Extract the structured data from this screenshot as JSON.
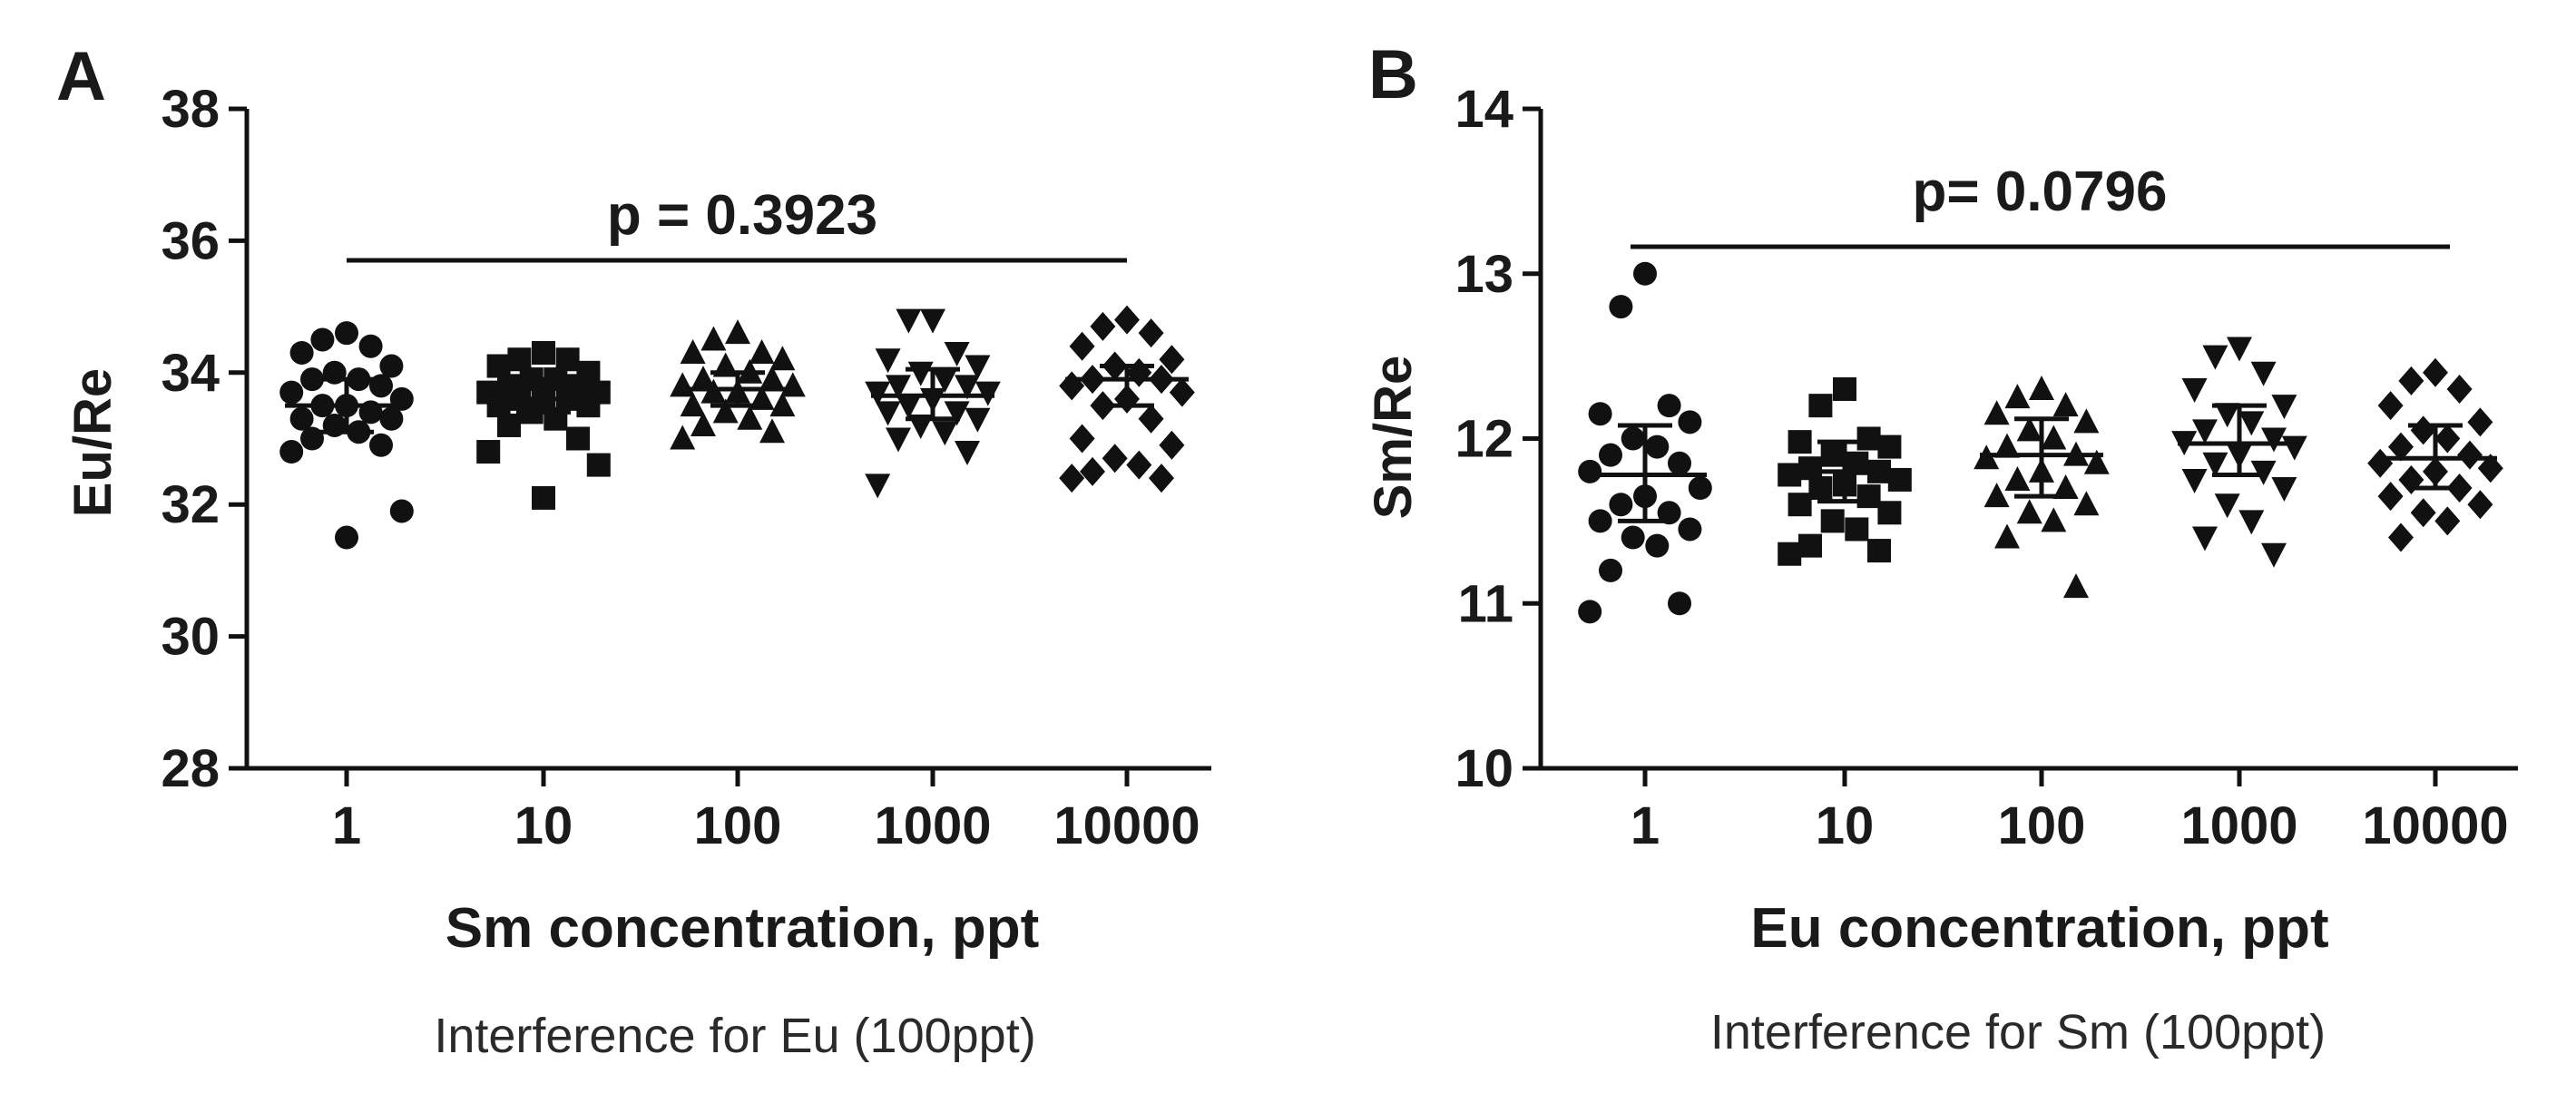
{
  "chart_data": [
    {
      "type": "scatter",
      "panel_label": "A",
      "xlabel": "Sm concentration, ppt",
      "ylabel": "Eu/Re",
      "caption": "Interference for Eu (100ppt)",
      "annotation": "p = 0.3923",
      "ylim": [
        28,
        38
      ],
      "yticks": [
        28,
        30,
        32,
        34,
        36,
        38
      ],
      "categories": [
        "1",
        "10",
        "100",
        "1000",
        "10000"
      ],
      "grid": false,
      "series": [
        {
          "category": "1",
          "marker": "circle",
          "mean": 33.5,
          "err_low": 33.1,
          "err_high": 33.9,
          "values": [
            34.6,
            34.5,
            34.4,
            34.3,
            34.1,
            34.0,
            33.9,
            33.9,
            33.8,
            33.7,
            33.6,
            33.5,
            33.5,
            33.4,
            33.3,
            33.3,
            33.2,
            33.1,
            33.0,
            32.9,
            32.8,
            31.9,
            31.5
          ]
        },
        {
          "category": "10",
          "marker": "square",
          "mean": 33.6,
          "err_low": 33.4,
          "err_high": 33.9,
          "values": [
            34.3,
            34.2,
            34.2,
            34.1,
            34.0,
            33.9,
            33.9,
            33.8,
            33.8,
            33.7,
            33.7,
            33.6,
            33.6,
            33.6,
            33.5,
            33.5,
            33.4,
            33.3,
            33.2,
            33.0,
            32.8,
            32.6,
            32.1
          ]
        },
        {
          "category": "100",
          "marker": "triangle-up",
          "mean": 33.75,
          "err_low": 33.5,
          "err_high": 34.0,
          "values": [
            34.6,
            34.5,
            34.3,
            34.3,
            34.2,
            34.1,
            34.0,
            33.9,
            33.9,
            33.8,
            33.8,
            33.7,
            33.7,
            33.6,
            33.5,
            33.5,
            33.4,
            33.3,
            33.2,
            33.1,
            33.0
          ]
        },
        {
          "category": "1000",
          "marker": "triangle-down",
          "mean": 33.65,
          "err_low": 33.3,
          "err_high": 34.05,
          "values": [
            34.8,
            34.8,
            34.3,
            34.2,
            34.1,
            34.0,
            33.9,
            33.8,
            33.8,
            33.7,
            33.7,
            33.6,
            33.5,
            33.4,
            33.4,
            33.3,
            33.2,
            33.1,
            33.0,
            32.8,
            32.3
          ]
        },
        {
          "category": "10000",
          "marker": "diamond",
          "mean": 33.9,
          "err_low": 33.5,
          "err_high": 34.1,
          "values": [
            34.8,
            34.7,
            34.6,
            34.4,
            34.2,
            34.1,
            34.0,
            33.9,
            33.9,
            33.8,
            33.7,
            33.6,
            33.5,
            33.3,
            33.0,
            32.9,
            32.7,
            32.6,
            32.5,
            32.4,
            32.4
          ]
        }
      ]
    },
    {
      "type": "scatter",
      "panel_label": "B",
      "xlabel": "Eu concentration, ppt",
      "ylabel": "Sm/Re",
      "caption": "Interference for Sm (100ppt)",
      "annotation": "p= 0.0796",
      "ylim": [
        10,
        14
      ],
      "yticks": [
        10,
        11,
        12,
        13,
        14
      ],
      "categories": [
        "1",
        "10",
        "100",
        "1000",
        "10000"
      ],
      "grid": false,
      "series": [
        {
          "category": "1",
          "marker": "circle",
          "mean": 11.78,
          "err_low": 11.5,
          "err_high": 12.08,
          "values": [
            13.0,
            12.8,
            12.2,
            12.15,
            12.1,
            12.0,
            11.95,
            11.9,
            11.85,
            11.8,
            11.7,
            11.65,
            11.6,
            11.55,
            11.5,
            11.45,
            11.4,
            11.35,
            11.2,
            11.0,
            10.95
          ]
        },
        {
          "category": "10",
          "marker": "square",
          "mean": 11.8,
          "err_low": 11.62,
          "err_high": 11.98,
          "values": [
            12.3,
            12.2,
            12.0,
            11.98,
            11.95,
            11.9,
            11.85,
            11.82,
            11.8,
            11.78,
            11.75,
            11.72,
            11.7,
            11.65,
            11.6,
            11.55,
            11.5,
            11.45,
            11.35,
            11.32,
            11.3
          ]
        },
        {
          "category": "100",
          "marker": "triangle-up",
          "mean": 11.9,
          "err_low": 11.65,
          "err_high": 12.12,
          "values": [
            12.3,
            12.25,
            12.2,
            12.15,
            12.1,
            12.05,
            12.0,
            11.95,
            11.9,
            11.88,
            11.85,
            11.8,
            11.75,
            11.7,
            11.65,
            11.6,
            11.55,
            11.5,
            11.4,
            11.1
          ]
        },
        {
          "category": "1000",
          "marker": "triangle-down",
          "mean": 11.97,
          "err_low": 11.78,
          "err_high": 12.2,
          "values": [
            12.55,
            12.5,
            12.4,
            12.3,
            12.2,
            12.15,
            12.1,
            12.05,
            12.0,
            11.98,
            11.95,
            11.9,
            11.85,
            11.8,
            11.75,
            11.7,
            11.6,
            11.5,
            11.4,
            11.3
          ]
        },
        {
          "category": "10000",
          "marker": "diamond",
          "mean": 11.88,
          "err_low": 11.7,
          "err_high": 12.08,
          "values": [
            12.4,
            12.35,
            12.3,
            12.2,
            12.1,
            12.05,
            12.0,
            11.95,
            11.9,
            11.85,
            11.82,
            11.8,
            11.75,
            11.7,
            11.65,
            11.6,
            11.55,
            11.5,
            11.4
          ]
        }
      ]
    }
  ]
}
